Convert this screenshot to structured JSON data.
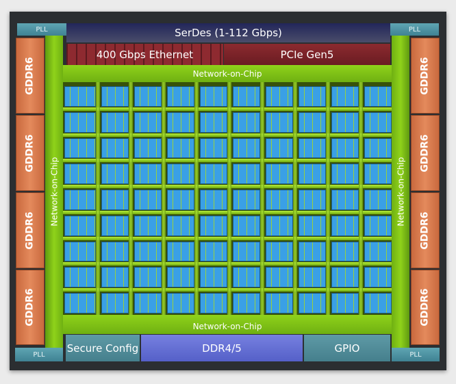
{
  "blocks": {
    "pll": "PLL",
    "serdes": "SerDes (1-112 Gbps)",
    "ethernet": "400 Gbps Ethernet",
    "pcie": "PCIe Gen5",
    "gddr": "GDDR6",
    "noc": "Network-on-Chip",
    "secure_config": "Secure Config",
    "ddr": "DDR4/5",
    "gpio": "GPIO"
  },
  "core_grid": {
    "rows": 9,
    "columns": 10
  },
  "colors": {
    "noc": "#8fd21a",
    "core": "#3aa0e6",
    "gddr": "#e48a5c",
    "serdes": "#22265a",
    "ethernet": "#8e2a30",
    "ddr": "#6a74d8",
    "pll": "#4f95a5"
  }
}
